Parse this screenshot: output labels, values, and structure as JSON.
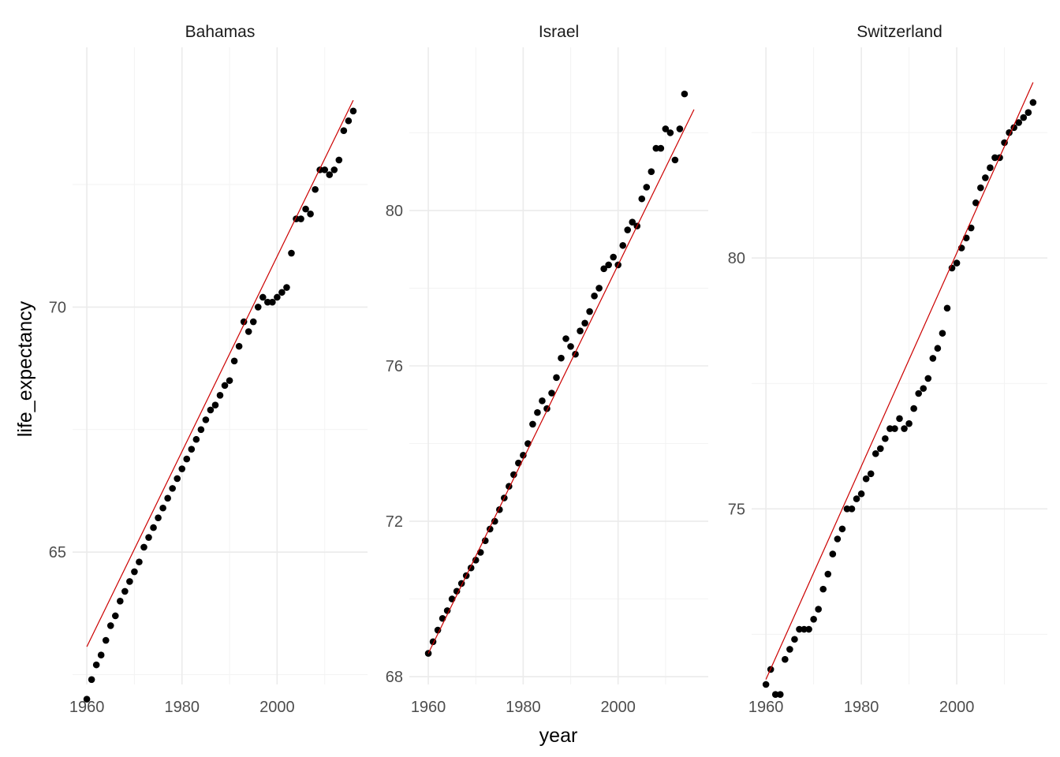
{
  "chart_data": {
    "type": "scatter",
    "xlabel": "year",
    "ylabel": "life_expectancy",
    "colors": {
      "points": "#000000",
      "fit_line": "#cc0000",
      "grid": "#ebebeb"
    },
    "grid": true,
    "panels": [
      {
        "title": "Bahamas",
        "xlim": [
          1957,
          2019
        ],
        "ylim": [
          62.3,
          75.3
        ],
        "xticks": [
          1960,
          1980,
          2000
        ],
        "xtick_labels": [
          "1960",
          "1980",
          "2000"
        ],
        "yticks": [
          65,
          70
        ],
        "ytick_labels": [
          "65",
          "70"
        ],
        "yminor": [
          62.5,
          67.5,
          72.5
        ],
        "fit": {
          "x": [
            1960,
            2016
          ],
          "y": [
            63.07,
            74.22
          ]
        },
        "points": [
          [
            1960,
            62.0
          ],
          [
            1961,
            62.4
          ],
          [
            1962,
            62.7
          ],
          [
            1963,
            62.9
          ],
          [
            1964,
            63.2
          ],
          [
            1965,
            63.5
          ],
          [
            1966,
            63.7
          ],
          [
            1967,
            64.0
          ],
          [
            1968,
            64.2
          ],
          [
            1969,
            64.4
          ],
          [
            1970,
            64.6
          ],
          [
            1971,
            64.8
          ],
          [
            1972,
            65.1
          ],
          [
            1973,
            65.3
          ],
          [
            1974,
            65.5
          ],
          [
            1975,
            65.7
          ],
          [
            1976,
            65.9
          ],
          [
            1977,
            66.1
          ],
          [
            1978,
            66.3
          ],
          [
            1979,
            66.5
          ],
          [
            1980,
            66.7
          ],
          [
            1981,
            66.9
          ],
          [
            1982,
            67.1
          ],
          [
            1983,
            67.3
          ],
          [
            1984,
            67.5
          ],
          [
            1985,
            67.7
          ],
          [
            1986,
            67.9
          ],
          [
            1987,
            68.0
          ],
          [
            1988,
            68.2
          ],
          [
            1989,
            68.4
          ],
          [
            1990,
            68.5
          ],
          [
            1991,
            68.9
          ],
          [
            1992,
            69.2
          ],
          [
            1993,
            69.7
          ],
          [
            1994,
            69.5
          ],
          [
            1995,
            69.7
          ],
          [
            1996,
            70.0
          ],
          [
            1997,
            70.2
          ],
          [
            1998,
            70.1
          ],
          [
            1999,
            70.1
          ],
          [
            2000,
            70.2
          ],
          [
            2001,
            70.3
          ],
          [
            2002,
            70.4
          ],
          [
            2003,
            71.1
          ],
          [
            2004,
            71.8
          ],
          [
            2005,
            71.8
          ],
          [
            2006,
            72.0
          ],
          [
            2007,
            71.9
          ],
          [
            2008,
            72.4
          ],
          [
            2009,
            72.8
          ],
          [
            2010,
            72.8
          ],
          [
            2011,
            72.7
          ],
          [
            2012,
            72.8
          ],
          [
            2013,
            73.0
          ],
          [
            2014,
            73.6
          ],
          [
            2015,
            73.8
          ],
          [
            2016,
            74.0
          ]
        ]
      },
      {
        "title": "Israel",
        "xlim": [
          1956,
          2019
        ],
        "ylim": [
          67.8,
          84.2
        ],
        "xticks": [
          1960,
          1980,
          2000
        ],
        "xtick_labels": [
          "1960",
          "1980",
          "2000"
        ],
        "yticks": [
          68,
          72,
          76,
          80
        ],
        "ytick_labels": [
          "68",
          "72",
          "76",
          "80"
        ],
        "yminor": [
          70,
          74,
          78,
          82
        ],
        "fit": {
          "x": [
            1960,
            2016
          ],
          "y": [
            68.6,
            82.6
          ]
        },
        "points": [
          [
            1960,
            68.6
          ],
          [
            1961,
            68.9
          ],
          [
            1962,
            69.2
          ],
          [
            1963,
            69.5
          ],
          [
            1964,
            69.7
          ],
          [
            1965,
            70.0
          ],
          [
            1966,
            70.2
          ],
          [
            1967,
            70.4
          ],
          [
            1968,
            70.6
          ],
          [
            1969,
            70.8
          ],
          [
            1970,
            71.0
          ],
          [
            1971,
            71.2
          ],
          [
            1972,
            71.5
          ],
          [
            1973,
            71.8
          ],
          [
            1974,
            72.0
          ],
          [
            1975,
            72.3
          ],
          [
            1976,
            72.6
          ],
          [
            1977,
            72.9
          ],
          [
            1978,
            73.2
          ],
          [
            1979,
            73.5
          ],
          [
            1980,
            73.7
          ],
          [
            1981,
            74.0
          ],
          [
            1982,
            74.5
          ],
          [
            1983,
            74.8
          ],
          [
            1984,
            75.1
          ],
          [
            1985,
            74.9
          ],
          [
            1986,
            75.3
          ],
          [
            1987,
            75.7
          ],
          [
            1988,
            76.2
          ],
          [
            1989,
            76.7
          ],
          [
            1990,
            76.5
          ],
          [
            1991,
            76.3
          ],
          [
            1992,
            76.9
          ],
          [
            1993,
            77.1
          ],
          [
            1994,
            77.4
          ],
          [
            1995,
            77.8
          ],
          [
            1996,
            78.0
          ],
          [
            1997,
            78.5
          ],
          [
            1998,
            78.6
          ],
          [
            1999,
            78.8
          ],
          [
            2000,
            78.6
          ],
          [
            2001,
            79.1
          ],
          [
            2002,
            79.5
          ],
          [
            2003,
            79.7
          ],
          [
            2004,
            79.6
          ],
          [
            2005,
            80.3
          ],
          [
            2006,
            80.6
          ],
          [
            2007,
            81.0
          ],
          [
            2008,
            81.6
          ],
          [
            2009,
            81.6
          ],
          [
            2010,
            82.1
          ],
          [
            2011,
            82.0
          ],
          [
            2012,
            81.3
          ],
          [
            2013,
            82.1
          ],
          [
            2014,
            83.0
          ]
        ]
      },
      {
        "title": "Switzerland",
        "xlim": [
          1957,
          2019
        ],
        "ylim": [
          71.5,
          84.2
        ],
        "xticks": [
          1960,
          1980,
          2000
        ],
        "xtick_labels": [
          "1960",
          "1980",
          "2000"
        ],
        "yticks": [
          75,
          80
        ],
        "ytick_labels": [
          "75",
          "80"
        ],
        "yminor": [
          72.5,
          77.5,
          82.5
        ],
        "fit": {
          "x": [
            1960,
            2016
          ],
          "y": [
            71.6,
            83.5
          ]
        },
        "points": [
          [
            1960,
            71.5
          ],
          [
            1961,
            71.8
          ],
          [
            1962,
            71.3
          ],
          [
            1963,
            71.3
          ],
          [
            1964,
            72.0
          ],
          [
            1965,
            72.2
          ],
          [
            1966,
            72.4
          ],
          [
            1967,
            72.6
          ],
          [
            1968,
            72.6
          ],
          [
            1969,
            72.6
          ],
          [
            1970,
            72.8
          ],
          [
            1971,
            73.0
          ],
          [
            1972,
            73.4
          ],
          [
            1973,
            73.7
          ],
          [
            1974,
            74.1
          ],
          [
            1975,
            74.4
          ],
          [
            1976,
            74.6
          ],
          [
            1977,
            75.0
          ],
          [
            1978,
            75.0
          ],
          [
            1979,
            75.2
          ],
          [
            1980,
            75.3
          ],
          [
            1981,
            75.6
          ],
          [
            1982,
            75.7
          ],
          [
            1983,
            76.1
          ],
          [
            1984,
            76.2
          ],
          [
            1985,
            76.4
          ],
          [
            1986,
            76.6
          ],
          [
            1987,
            76.6
          ],
          [
            1988,
            76.8
          ],
          [
            1989,
            76.6
          ],
          [
            1990,
            76.7
          ],
          [
            1991,
            77.0
          ],
          [
            1992,
            77.3
          ],
          [
            1993,
            77.4
          ],
          [
            1994,
            77.6
          ],
          [
            1995,
            78.0
          ],
          [
            1996,
            78.2
          ],
          [
            1997,
            78.5
          ],
          [
            1998,
            79.0
          ],
          [
            1999,
            79.8
          ],
          [
            2000,
            79.9
          ],
          [
            2001,
            80.2
          ],
          [
            2002,
            80.4
          ],
          [
            2003,
            80.6
          ],
          [
            2004,
            81.1
          ],
          [
            2005,
            81.4
          ],
          [
            2006,
            81.6
          ],
          [
            2007,
            81.8
          ],
          [
            2008,
            82.0
          ],
          [
            2009,
            82.0
          ],
          [
            2010,
            82.3
          ],
          [
            2011,
            82.5
          ],
          [
            2012,
            82.6
          ],
          [
            2013,
            82.7
          ],
          [
            2014,
            82.8
          ],
          [
            2015,
            82.9
          ],
          [
            2016,
            83.1
          ]
        ]
      }
    ]
  }
}
